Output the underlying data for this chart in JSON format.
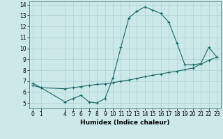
{
  "xlabel": "Humidex (Indice chaleur)",
  "bg_color": "#cce8e8",
  "line_color": "#1a6666",
  "grid_color": "#aad0d0",
  "line1_x": [
    0,
    1,
    4,
    5,
    6,
    7,
    8,
    9,
    10,
    11,
    12,
    13,
    14,
    15,
    16,
    17,
    18,
    19,
    20,
    21,
    22,
    23
  ],
  "line1_y": [
    6.8,
    6.4,
    5.1,
    5.4,
    5.7,
    5.1,
    5.0,
    5.4,
    7.3,
    10.1,
    12.8,
    13.4,
    13.8,
    13.5,
    13.2,
    12.4,
    10.5,
    8.5,
    8.5,
    8.6,
    10.1,
    9.2
  ],
  "line2_x": [
    0,
    1,
    4,
    5,
    6,
    7,
    8,
    9,
    10,
    11,
    12,
    13,
    14,
    15,
    16,
    17,
    18,
    19,
    20,
    21,
    22,
    23
  ],
  "line2_y": [
    6.6,
    6.4,
    6.3,
    6.4,
    6.5,
    6.6,
    6.7,
    6.75,
    6.85,
    7.0,
    7.1,
    7.25,
    7.4,
    7.55,
    7.65,
    7.8,
    7.9,
    8.05,
    8.2,
    8.55,
    8.9,
    9.2
  ],
  "xlim": [
    -0.5,
    23.5
  ],
  "ylim": [
    4.5,
    14.3
  ],
  "xticks": [
    0,
    1,
    4,
    5,
    6,
    7,
    8,
    9,
    10,
    11,
    12,
    13,
    14,
    15,
    16,
    17,
    18,
    19,
    20,
    21,
    22,
    23
  ],
  "yticks": [
    5,
    6,
    7,
    8,
    9,
    10,
    11,
    12,
    13,
    14
  ],
  "tick_fontsize": 5.5,
  "xlabel_fontsize": 6.5
}
